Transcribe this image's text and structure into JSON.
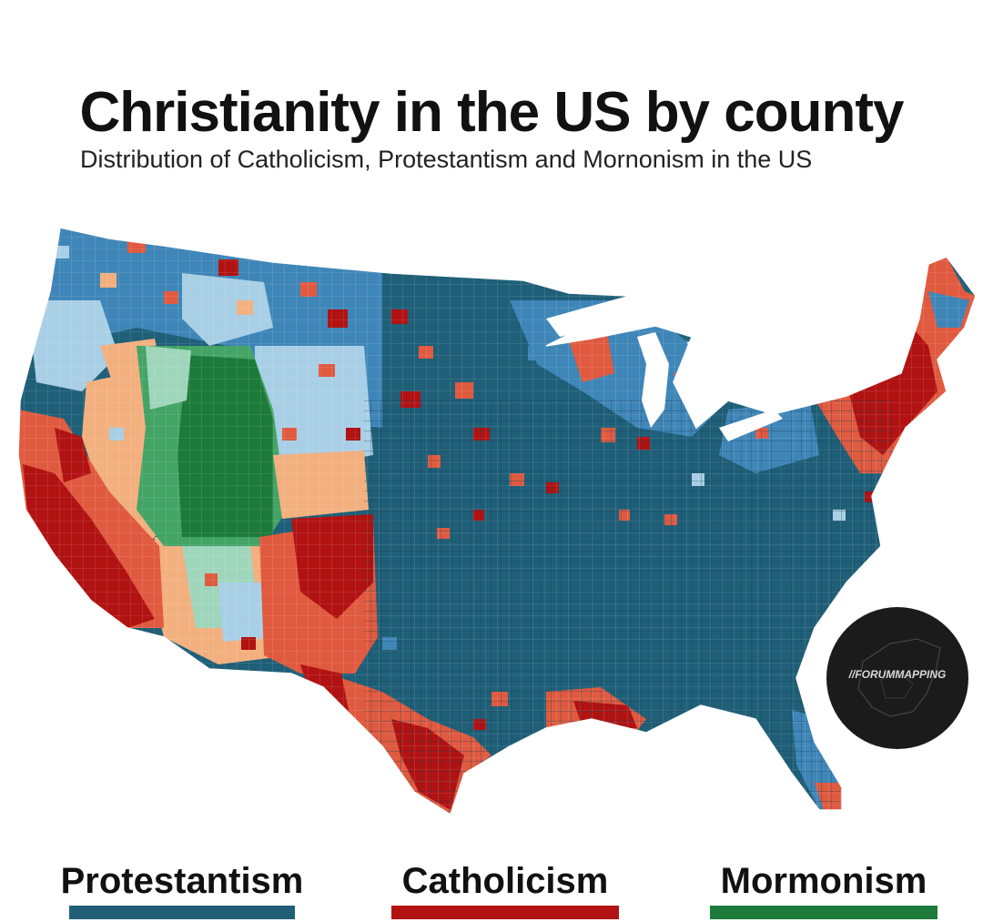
{
  "title": "Christianity in the US by county",
  "subtitle": "Distribution of Catholicism, Protestantism and Mornonism in the US",
  "colors": {
    "protestant_dark": "#1f5f78",
    "protestant_mid": "#3f86b8",
    "protestant_light": "#a9cfe6",
    "catholic_dark": "#b11212",
    "catholic_mid": "#e05a3f",
    "catholic_light": "#f3b07f",
    "mormon_dark": "#1c7a3a",
    "mormon_mid": "#43a466",
    "mormon_light": "#9fd6bb"
  },
  "legend": [
    {
      "label": "Protestantism",
      "color": "#1f5f78"
    },
    {
      "label": "Catholicism",
      "color": "#b11212"
    },
    {
      "label": "Mormonism",
      "color": "#1c7a3a"
    }
  ],
  "badge": {
    "text": "//FORUMMAPPING"
  }
}
